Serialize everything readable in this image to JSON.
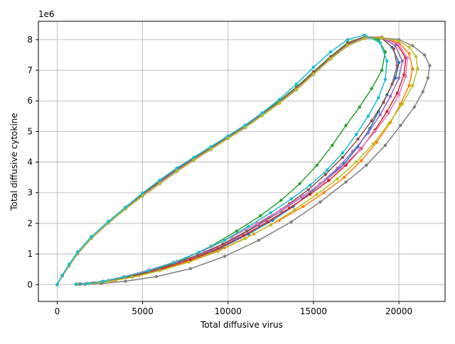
{
  "chart_data": {
    "type": "line",
    "title": "",
    "xlabel": "Total diffusive virus",
    "ylabel": "Total diffusive cytokine",
    "y_offset_label": "1e6",
    "xlim": [
      -1100,
      22700
    ],
    "ylim": [
      -550000,
      8600000
    ],
    "x_ticks": [
      0,
      5000,
      10000,
      15000,
      20000
    ],
    "x_tick_labels": [
      "0",
      "5000",
      "10000",
      "15000",
      "20000"
    ],
    "y_ticks": [
      0,
      1000000,
      2000000,
      3000000,
      4000000,
      5000000,
      6000000,
      7000000,
      8000000
    ],
    "y_tick_labels": [
      "0",
      "1",
      "2",
      "3",
      "4",
      "5",
      "6",
      "7",
      "8"
    ],
    "grid": true,
    "marker": "circle",
    "colors": [
      "#1f77b4",
      "#ff7f0e",
      "#2ca02c",
      "#d62728",
      "#9467bd",
      "#8c564b",
      "#e377c2",
      "#7f7f7f",
      "#bcbd22",
      "#17becf"
    ],
    "series": [
      {
        "x": [
          0,
          300,
          700,
          1200,
          2000,
          3000,
          4000,
          5000,
          6000,
          7000,
          8000,
          9000,
          10000,
          11000,
          12000,
          13000,
          14000,
          15000,
          16000,
          17000,
          18000,
          19000,
          19600,
          20000,
          19800,
          19300,
          18800,
          18300,
          17600,
          16800,
          15800,
          14800,
          13800,
          12600,
          11200,
          9600,
          8000,
          6400,
          4800,
          3400,
          2200,
          1400
        ],
        "y": [
          0,
          300000,
          650000,
          1050000,
          1550000,
          2050000,
          2500000,
          2950000,
          3350000,
          3750000,
          4100000,
          4450000,
          4800000,
          5150000,
          5550000,
          5950000,
          6400000,
          6900000,
          7400000,
          7850000,
          8100000,
          8050000,
          7750000,
          7250000,
          6750000,
          6200000,
          5650000,
          5100000,
          4500000,
          3950000,
          3450000,
          3000000,
          2550000,
          2100000,
          1650000,
          1200000,
          850000,
          560000,
          320000,
          150000,
          60000,
          20000
        ]
      },
      {
        "x": [
          0,
          300,
          700,
          1200,
          2000,
          3000,
          4000,
          5000,
          6000,
          7000,
          8000,
          9000,
          10000,
          11000,
          12000,
          13000,
          14000,
          15000,
          16000,
          17000,
          18000,
          19000,
          20000,
          20600,
          20800,
          20600,
          20100,
          19500,
          18700,
          17800,
          16800,
          15600,
          14400,
          13000,
          11500,
          9800,
          8100,
          6400,
          4800,
          3400,
          2200,
          1300
        ],
        "y": [
          0,
          280000,
          620000,
          1020000,
          1520000,
          2020000,
          2480000,
          2900000,
          3300000,
          3700000,
          4080000,
          4430000,
          4790000,
          5140000,
          5540000,
          5940000,
          6380000,
          6880000,
          7380000,
          7820000,
          8060000,
          8050000,
          7900000,
          7550000,
          7050000,
          6500000,
          5900000,
          5300000,
          4650000,
          4050000,
          3500000,
          3000000,
          2550000,
          2100000,
          1650000,
          1200000,
          840000,
          540000,
          300000,
          140000,
          50000,
          15000
        ]
      },
      {
        "x": [
          0,
          300,
          700,
          1200,
          2000,
          3000,
          4000,
          5000,
          6000,
          7000,
          8000,
          9000,
          10000,
          11000,
          12000,
          13000,
          14000,
          15000,
          16000,
          17000,
          18000,
          18800,
          19200,
          19000,
          18400,
          17700,
          16900,
          16100,
          15200,
          14200,
          13100,
          11900,
          10500,
          9000,
          7500,
          6000,
          4500,
          3200,
          2100,
          1300
        ],
        "y": [
          0,
          310000,
          660000,
          1060000,
          1560000,
          2060000,
          2520000,
          2980000,
          3400000,
          3800000,
          4150000,
          4500000,
          4850000,
          5200000,
          5600000,
          6000000,
          6450000,
          6950000,
          7450000,
          7900000,
          8100000,
          8000000,
          7600000,
          7000000,
          6400000,
          5800000,
          5200000,
          4550000,
          3900000,
          3300000,
          2750000,
          2250000,
          1750000,
          1250000,
          850000,
          540000,
          300000,
          140000,
          50000,
          15000
        ]
      },
      {
        "x": [
          0,
          300,
          700,
          1200,
          2000,
          3000,
          4000,
          5000,
          6000,
          7000,
          8000,
          9000,
          10000,
          11000,
          12000,
          13000,
          14000,
          15000,
          16000,
          17000,
          18000,
          19000,
          19900,
          20400,
          20300,
          19900,
          19300,
          18600,
          17800,
          16900,
          15900,
          14800,
          13600,
          12300,
          10900,
          9400,
          7800,
          6200,
          4600,
          3200,
          2100,
          1300
        ],
        "y": [
          0,
          290000,
          640000,
          1040000,
          1540000,
          2040000,
          2490000,
          2920000,
          3320000,
          3720000,
          4090000,
          4440000,
          4800000,
          5150000,
          5550000,
          5950000,
          6400000,
          6900000,
          7400000,
          7850000,
          8080000,
          8080000,
          7850000,
          7400000,
          6850000,
          6250000,
          5650000,
          5050000,
          4450000,
          3900000,
          3400000,
          2950000,
          2500000,
          2050000,
          1600000,
          1180000,
          820000,
          530000,
          300000,
          140000,
          50000,
          15000
        ]
      },
      {
        "x": [
          0,
          300,
          700,
          1200,
          2000,
          3000,
          4000,
          5000,
          6000,
          7000,
          8000,
          9000,
          10000,
          11000,
          12000,
          13000,
          14000,
          15000,
          16000,
          17000,
          18000,
          19000,
          19800,
          20200,
          20000,
          19500,
          18900,
          18200,
          17300,
          16400,
          15400,
          14300,
          13100,
          11800,
          10400,
          8900,
          7300,
          5800,
          4300,
          3000,
          2000,
          1200
        ],
        "y": [
          0,
          300000,
          650000,
          1040000,
          1540000,
          2030000,
          2480000,
          2930000,
          3340000,
          3740000,
          4100000,
          4460000,
          4810000,
          5160000,
          5560000,
          5960000,
          6420000,
          6920000,
          7420000,
          7870000,
          8090000,
          8060000,
          7800000,
          7300000,
          6750000,
          6150000,
          5550000,
          4950000,
          4350000,
          3800000,
          3300000,
          2850000,
          2400000,
          1950000,
          1500000,
          1100000,
          760000,
          490000,
          280000,
          130000,
          45000,
          15000
        ]
      },
      {
        "x": [
          0,
          300,
          700,
          1200,
          2000,
          3000,
          4000,
          5000,
          6000,
          7000,
          8000,
          9000,
          10000,
          11000,
          12000,
          13000,
          14000,
          15000,
          16000,
          17000,
          18000,
          19000,
          19700,
          19900,
          19600,
          19100,
          18400,
          17600,
          16700,
          15700,
          14700,
          13600,
          12400,
          11100,
          9700,
          8200,
          6700,
          5200,
          3800,
          2600,
          1700,
          1100
        ],
        "y": [
          0,
          300000,
          660000,
          1050000,
          1550000,
          2050000,
          2510000,
          2960000,
          3370000,
          3770000,
          4120000,
          4470000,
          4820000,
          5170000,
          5570000,
          5970000,
          6430000,
          6930000,
          7430000,
          7880000,
          8100000,
          8050000,
          7700000,
          7150000,
          6550000,
          5950000,
          5350000,
          4750000,
          4150000,
          3600000,
          3100000,
          2650000,
          2200000,
          1750000,
          1330000,
          960000,
          650000,
          400000,
          210000,
          90000,
          30000,
          10000
        ]
      },
      {
        "x": [
          0,
          300,
          700,
          1200,
          2000,
          3000,
          4000,
          5000,
          6000,
          7000,
          8000,
          9000,
          10000,
          11000,
          12000,
          13000,
          14000,
          15000,
          16000,
          17000,
          18000,
          19000,
          20000,
          20500,
          20400,
          20000,
          19400,
          18600,
          17700,
          16700,
          15600,
          14400,
          13100,
          11700,
          10200,
          8600,
          7000,
          5400,
          3900,
          2700,
          1700,
          1100
        ],
        "y": [
          0,
          290000,
          630000,
          1030000,
          1530000,
          2030000,
          2480000,
          2910000,
          3310000,
          3710000,
          4080000,
          4430000,
          4790000,
          5140000,
          5540000,
          5940000,
          6380000,
          6880000,
          7380000,
          7820000,
          8060000,
          8060000,
          7850000,
          7400000,
          6800000,
          6200000,
          5600000,
          5000000,
          4400000,
          3850000,
          3350000,
          2900000,
          2450000,
          2000000,
          1550000,
          1120000,
          760000,
          480000,
          260000,
          110000,
          35000,
          10000
        ]
      },
      {
        "x": [
          0,
          300,
          700,
          1200,
          2000,
          3000,
          4000,
          5000,
          6000,
          7000,
          8000,
          9000,
          10000,
          11000,
          12000,
          13000,
          14000,
          15000,
          16000,
          17000,
          18000,
          19000,
          20000,
          20800,
          21500,
          21800,
          21700,
          21400,
          20900,
          20100,
          19200,
          18100,
          16900,
          15400,
          13700,
          11800,
          9800,
          7800,
          5800,
          4000,
          2600,
          1600,
          1100
        ],
        "y": [
          0,
          280000,
          610000,
          1010000,
          1510000,
          2010000,
          2470000,
          2890000,
          3290000,
          3690000,
          4060000,
          4410000,
          4770000,
          5120000,
          5520000,
          5920000,
          6360000,
          6860000,
          7360000,
          7800000,
          8040000,
          8060000,
          8000000,
          7800000,
          7500000,
          7150000,
          6750000,
          6300000,
          5800000,
          5200000,
          4550000,
          3900000,
          3350000,
          2700000,
          2050000,
          1450000,
          920000,
          520000,
          260000,
          110000,
          35000,
          10000,
          5000
        ]
      },
      {
        "x": [
          0,
          300,
          700,
          1200,
          2000,
          3000,
          4000,
          5000,
          6000,
          7000,
          8000,
          9000,
          10000,
          11000,
          12000,
          13000,
          14000,
          15000,
          16000,
          17000,
          18000,
          19000,
          20000,
          20600,
          21000,
          21100,
          20800,
          20200,
          19400,
          18500,
          17500,
          16400,
          15200,
          13900,
          12500,
          11000,
          9400,
          7700,
          6000,
          4400,
          3000,
          1900,
          1200
        ],
        "y": [
          0,
          290000,
          630000,
          1030000,
          1530000,
          2030000,
          2480000,
          2900000,
          3300000,
          3700000,
          4070000,
          4420000,
          4780000,
          5130000,
          5530000,
          5930000,
          6370000,
          6870000,
          7370000,
          7810000,
          8050000,
          8060000,
          7950000,
          7750000,
          7450000,
          7050000,
          6500000,
          5900000,
          5250000,
          4600000,
          4000000,
          3450000,
          2950000,
          2450000,
          1950000,
          1500000,
          1080000,
          730000,
          450000,
          240000,
          100000,
          30000,
          10000
        ]
      },
      {
        "x": [
          0,
          300,
          700,
          1200,
          2000,
          3000,
          4000,
          5000,
          6000,
          7000,
          8000,
          9000,
          10000,
          11000,
          12000,
          13000,
          14000,
          15000,
          16000,
          17000,
          18000,
          18900,
          19300,
          19200,
          18800,
          18200,
          17500,
          16700,
          15800,
          14800,
          13700,
          12500,
          11200,
          9800,
          8300,
          6800,
          5300,
          3900,
          2700,
          1800,
          1100
        ],
        "y": [
          0,
          310000,
          670000,
          1070000,
          1570000,
          2070000,
          2530000,
          2990000,
          3410000,
          3810000,
          4160000,
          4510000,
          4860000,
          5210000,
          5610000,
          6050000,
          6550000,
          7100000,
          7600000,
          8000000,
          8150000,
          7900000,
          7300000,
          6700000,
          6100000,
          5500000,
          4900000,
          4300000,
          3750000,
          3250000,
          2800000,
          2350000,
          1900000,
          1450000,
          1060000,
          720000,
          450000,
          250000,
          110000,
          35000,
          10000
        ]
      }
    ]
  }
}
